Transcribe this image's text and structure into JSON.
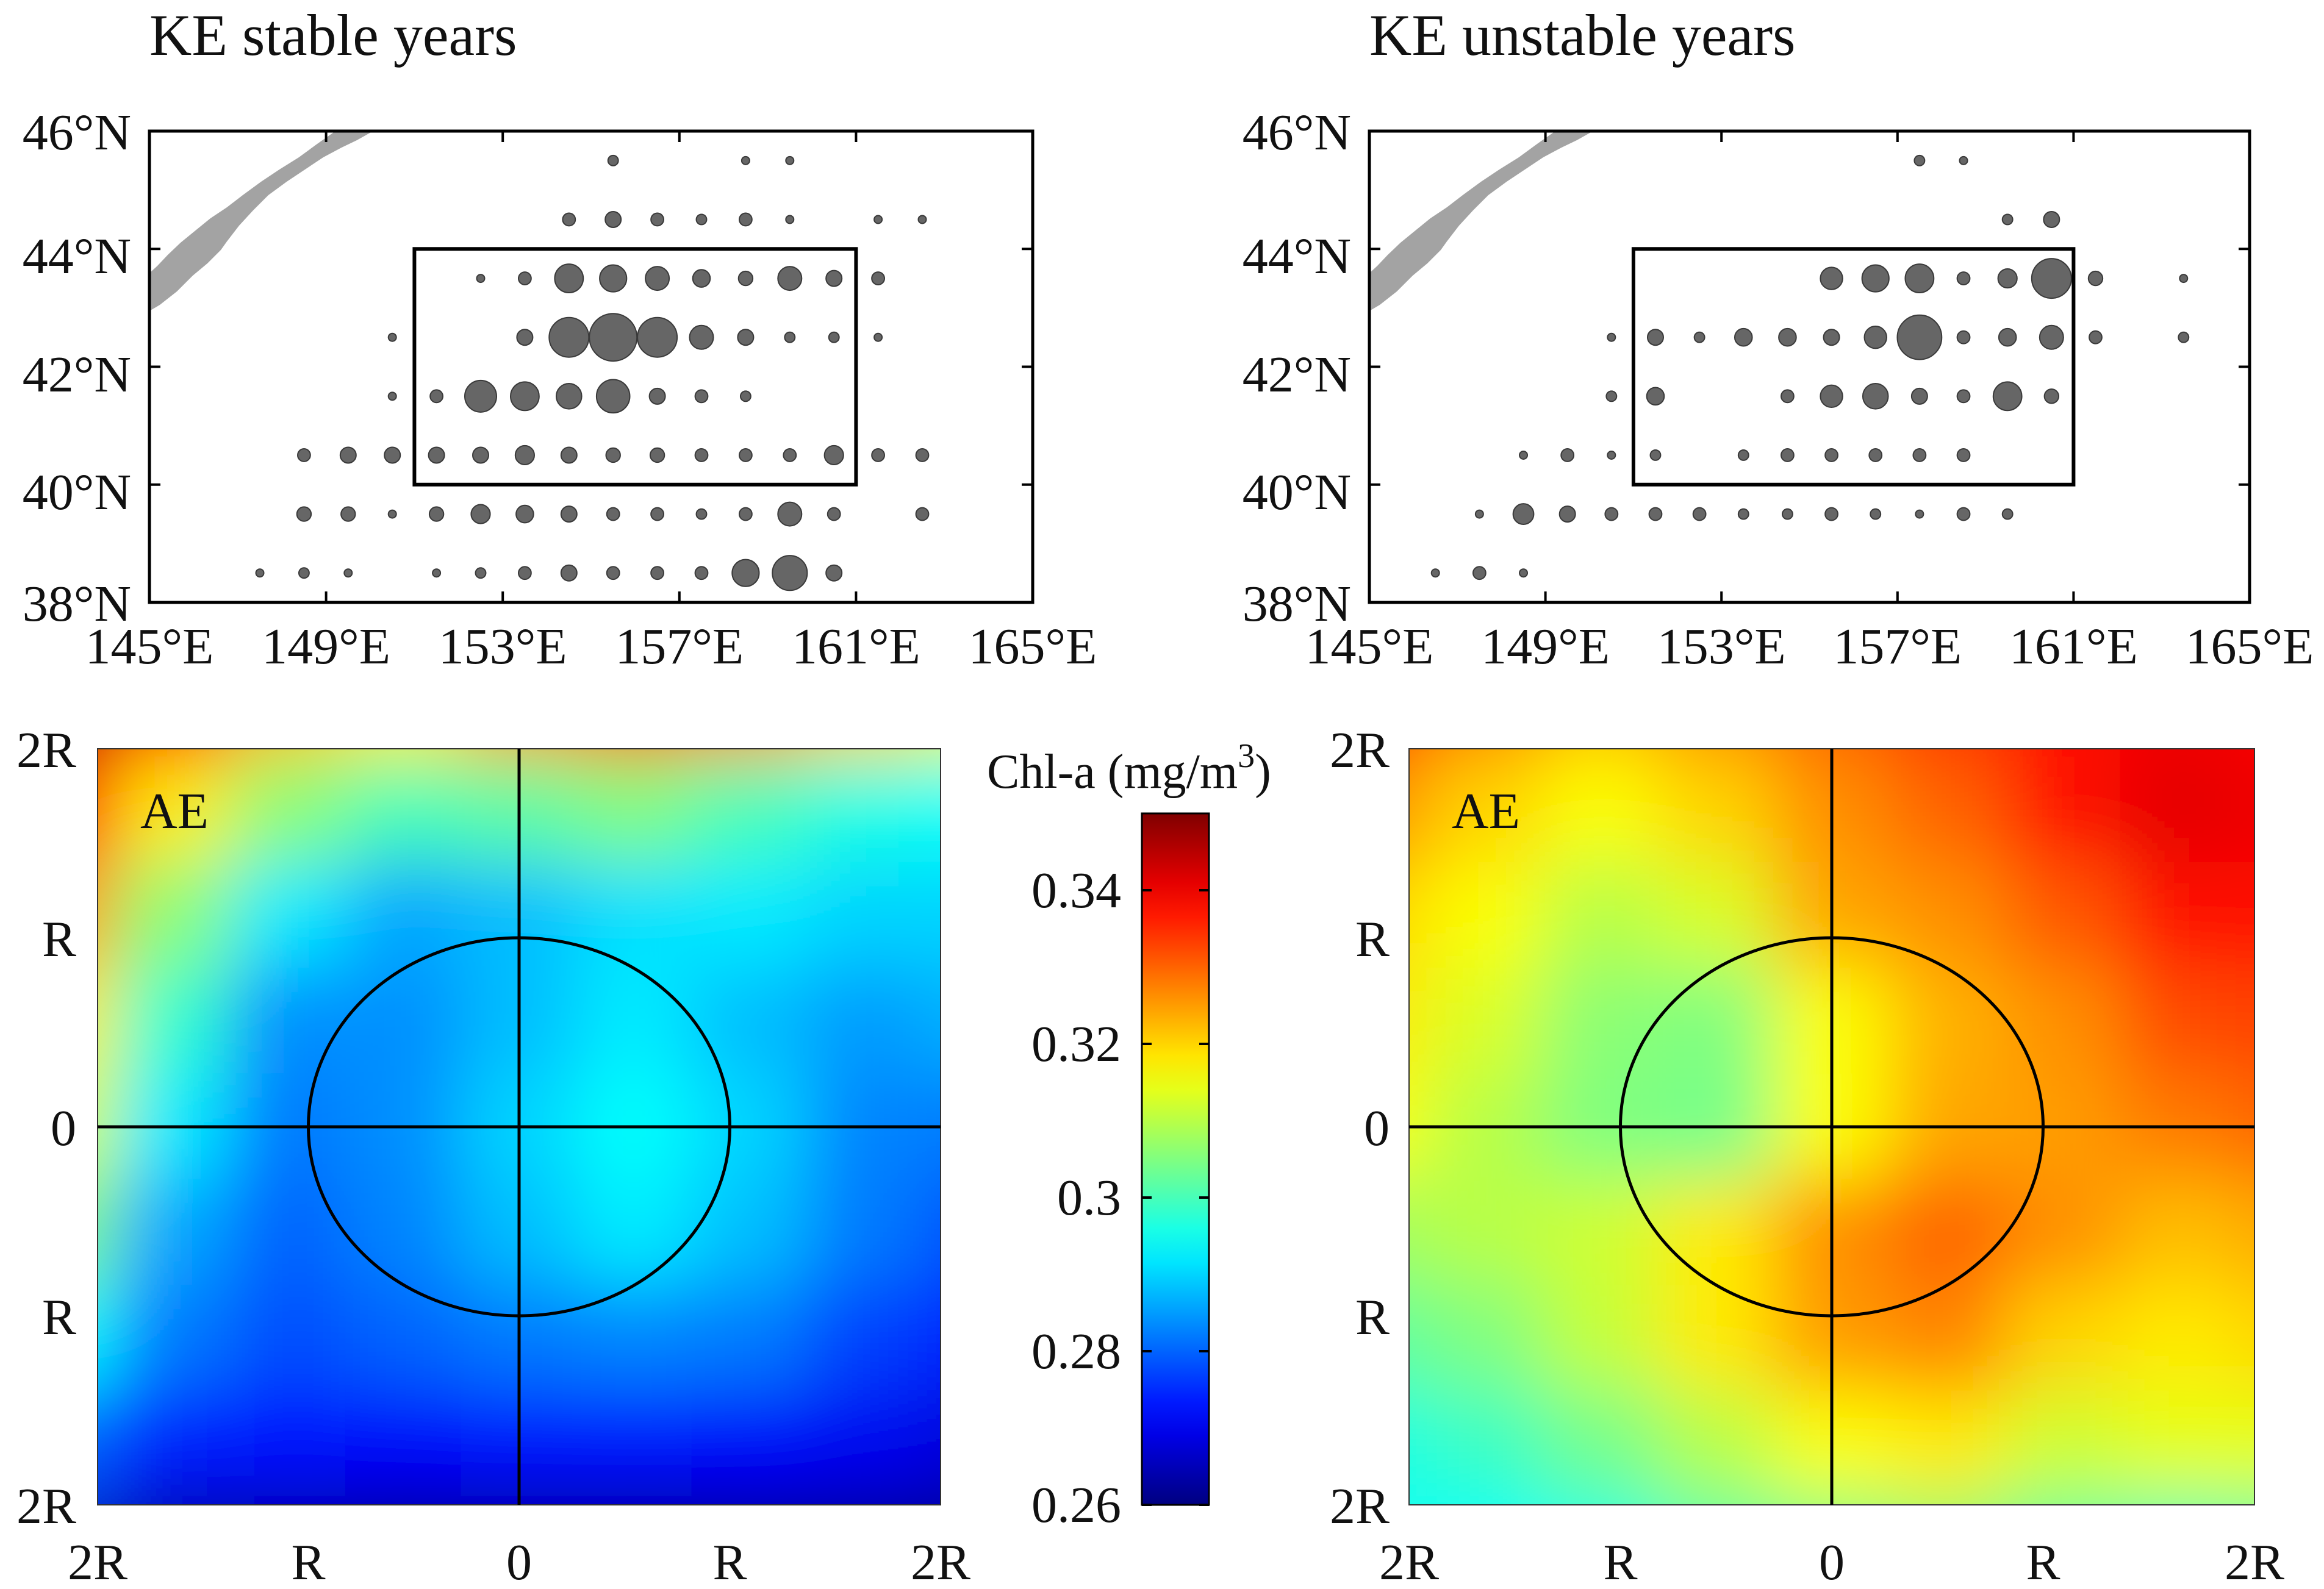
{
  "figure": {
    "colors": {
      "land": "#a3a3a3",
      "dot": "#666666",
      "dot_edge": "#3a3a3a",
      "frame": "#000000"
    }
  },
  "chart_data": [
    {
      "type": "scatter",
      "panel": "top-left",
      "title": "KE stable years",
      "x_ticks": [
        "145°E",
        "149°E",
        "153°E",
        "157°E",
        "161°E",
        "165°E"
      ],
      "y_ticks": [
        "38°N",
        "40°N",
        "42°N",
        "44°N",
        "46°N"
      ],
      "xlim": [
        145,
        165
      ],
      "ylim": [
        38,
        46
      ],
      "region_box": {
        "lon": [
          151,
          161
        ],
        "lat": [
          40,
          44
        ]
      },
      "points": [
        {
          "lon": 155.5,
          "lat": 45.5,
          "size": 1.3
        },
        {
          "lon": 158.5,
          "lat": 45.5,
          "size": 1.0
        },
        {
          "lon": 159.5,
          "lat": 45.5,
          "size": 1.0
        },
        {
          "lon": 154.5,
          "lat": 44.5,
          "size": 1.6
        },
        {
          "lon": 155.5,
          "lat": 44.5,
          "size": 2.0
        },
        {
          "lon": 156.5,
          "lat": 44.5,
          "size": 1.6
        },
        {
          "lon": 157.5,
          "lat": 44.5,
          "size": 1.3
        },
        {
          "lon": 158.5,
          "lat": 44.5,
          "size": 1.6
        },
        {
          "lon": 159.5,
          "lat": 44.5,
          "size": 1.0
        },
        {
          "lon": 161.5,
          "lat": 44.5,
          "size": 1.0
        },
        {
          "lon": 162.5,
          "lat": 44.5,
          "size": 1.0
        },
        {
          "lon": 152.5,
          "lat": 43.5,
          "size": 1.0
        },
        {
          "lon": 153.5,
          "lat": 43.5,
          "size": 1.6
        },
        {
          "lon": 154.5,
          "lat": 43.5,
          "size": 3.6
        },
        {
          "lon": 155.5,
          "lat": 43.5,
          "size": 3.4
        },
        {
          "lon": 156.5,
          "lat": 43.5,
          "size": 3.0
        },
        {
          "lon": 157.5,
          "lat": 43.5,
          "size": 2.2
        },
        {
          "lon": 158.5,
          "lat": 43.5,
          "size": 1.8
        },
        {
          "lon": 159.5,
          "lat": 43.5,
          "size": 3.0
        },
        {
          "lon": 160.5,
          "lat": 43.5,
          "size": 2.0
        },
        {
          "lon": 161.5,
          "lat": 43.5,
          "size": 1.6
        },
        {
          "lon": 150.5,
          "lat": 42.5,
          "size": 1.0
        },
        {
          "lon": 153.5,
          "lat": 42.5,
          "size": 2.0
        },
        {
          "lon": 154.5,
          "lat": 42.5,
          "size": 5.0
        },
        {
          "lon": 155.5,
          "lat": 42.5,
          "size": 6.0
        },
        {
          "lon": 156.5,
          "lat": 42.5,
          "size": 5.0
        },
        {
          "lon": 157.5,
          "lat": 42.5,
          "size": 3.0
        },
        {
          "lon": 158.5,
          "lat": 42.5,
          "size": 2.0
        },
        {
          "lon": 159.5,
          "lat": 42.5,
          "size": 1.3
        },
        {
          "lon": 160.5,
          "lat": 42.5,
          "size": 1.3
        },
        {
          "lon": 161.5,
          "lat": 42.5,
          "size": 1.0
        },
        {
          "lon": 150.5,
          "lat": 41.5,
          "size": 1.0
        },
        {
          "lon": 151.5,
          "lat": 41.5,
          "size": 1.6
        },
        {
          "lon": 152.5,
          "lat": 41.5,
          "size": 4.0
        },
        {
          "lon": 153.5,
          "lat": 41.5,
          "size": 3.6
        },
        {
          "lon": 154.5,
          "lat": 41.5,
          "size": 3.2
        },
        {
          "lon": 155.5,
          "lat": 41.5,
          "size": 4.2
        },
        {
          "lon": 156.5,
          "lat": 41.5,
          "size": 2.0
        },
        {
          "lon": 157.5,
          "lat": 41.5,
          "size": 1.6
        },
        {
          "lon": 158.5,
          "lat": 41.5,
          "size": 1.3
        },
        {
          "lon": 148.5,
          "lat": 40.5,
          "size": 1.6
        },
        {
          "lon": 149.5,
          "lat": 40.5,
          "size": 2.0
        },
        {
          "lon": 150.5,
          "lat": 40.5,
          "size": 2.0
        },
        {
          "lon": 151.5,
          "lat": 40.5,
          "size": 2.0
        },
        {
          "lon": 152.5,
          "lat": 40.5,
          "size": 2.0
        },
        {
          "lon": 153.5,
          "lat": 40.5,
          "size": 2.4
        },
        {
          "lon": 154.5,
          "lat": 40.5,
          "size": 2.0
        },
        {
          "lon": 155.5,
          "lat": 40.5,
          "size": 1.8
        },
        {
          "lon": 156.5,
          "lat": 40.5,
          "size": 1.8
        },
        {
          "lon": 157.5,
          "lat": 40.5,
          "size": 1.6
        },
        {
          "lon": 158.5,
          "lat": 40.5,
          "size": 1.6
        },
        {
          "lon": 159.5,
          "lat": 40.5,
          "size": 1.6
        },
        {
          "lon": 160.5,
          "lat": 40.5,
          "size": 2.4
        },
        {
          "lon": 161.5,
          "lat": 40.5,
          "size": 1.6
        },
        {
          "lon": 162.5,
          "lat": 40.5,
          "size": 1.6
        },
        {
          "lon": 148.5,
          "lat": 39.5,
          "size": 1.8
        },
        {
          "lon": 149.5,
          "lat": 39.5,
          "size": 1.8
        },
        {
          "lon": 150.5,
          "lat": 39.5,
          "size": 1.0
        },
        {
          "lon": 151.5,
          "lat": 39.5,
          "size": 1.8
        },
        {
          "lon": 152.5,
          "lat": 39.5,
          "size": 2.4
        },
        {
          "lon": 153.5,
          "lat": 39.5,
          "size": 2.2
        },
        {
          "lon": 154.5,
          "lat": 39.5,
          "size": 2.0
        },
        {
          "lon": 155.5,
          "lat": 39.5,
          "size": 1.6
        },
        {
          "lon": 156.5,
          "lat": 39.5,
          "size": 1.6
        },
        {
          "lon": 157.5,
          "lat": 39.5,
          "size": 1.3
        },
        {
          "lon": 158.5,
          "lat": 39.5,
          "size": 1.6
        },
        {
          "lon": 159.5,
          "lat": 39.5,
          "size": 3.0
        },
        {
          "lon": 160.5,
          "lat": 39.5,
          "size": 1.6
        },
        {
          "lon": 162.5,
          "lat": 39.5,
          "size": 1.6
        },
        {
          "lon": 147.5,
          "lat": 38.5,
          "size": 1.0
        },
        {
          "lon": 148.5,
          "lat": 38.5,
          "size": 1.3
        },
        {
          "lon": 149.5,
          "lat": 38.5,
          "size": 1.0
        },
        {
          "lon": 151.5,
          "lat": 38.5,
          "size": 1.0
        },
        {
          "lon": 152.5,
          "lat": 38.5,
          "size": 1.3
        },
        {
          "lon": 153.5,
          "lat": 38.5,
          "size": 1.6
        },
        {
          "lon": 154.5,
          "lat": 38.5,
          "size": 2.0
        },
        {
          "lon": 155.5,
          "lat": 38.5,
          "size": 1.6
        },
        {
          "lon": 156.5,
          "lat": 38.5,
          "size": 1.6
        },
        {
          "lon": 157.5,
          "lat": 38.5,
          "size": 1.6
        },
        {
          "lon": 158.5,
          "lat": 38.5,
          "size": 3.4
        },
        {
          "lon": 159.5,
          "lat": 38.5,
          "size": 4.4
        },
        {
          "lon": 160.5,
          "lat": 38.5,
          "size": 2.0
        }
      ]
    },
    {
      "type": "scatter",
      "panel": "top-right",
      "title": "KE unstable years",
      "x_ticks": [
        "145°E",
        "149°E",
        "153°E",
        "157°E",
        "161°E",
        "165°E"
      ],
      "y_ticks": [
        "38°N",
        "40°N",
        "42°N",
        "44°N",
        "46°N"
      ],
      "xlim": [
        145,
        165
      ],
      "ylim": [
        38,
        46
      ],
      "region_box": {
        "lon": [
          151,
          161
        ],
        "lat": [
          40,
          44
        ]
      },
      "points": [
        {
          "lon": 157.5,
          "lat": 45.5,
          "size": 1.3
        },
        {
          "lon": 158.5,
          "lat": 45.5,
          "size": 1.0
        },
        {
          "lon": 159.5,
          "lat": 44.5,
          "size": 1.3
        },
        {
          "lon": 160.5,
          "lat": 44.5,
          "size": 2.0
        },
        {
          "lon": 155.5,
          "lat": 43.5,
          "size": 2.8
        },
        {
          "lon": 156.5,
          "lat": 43.5,
          "size": 3.4
        },
        {
          "lon": 157.5,
          "lat": 43.5,
          "size": 3.6
        },
        {
          "lon": 158.5,
          "lat": 43.5,
          "size": 1.6
        },
        {
          "lon": 159.5,
          "lat": 43.5,
          "size": 2.4
        },
        {
          "lon": 160.5,
          "lat": 43.5,
          "size": 5.0
        },
        {
          "lon": 161.5,
          "lat": 43.5,
          "size": 1.8
        },
        {
          "lon": 163.5,
          "lat": 43.5,
          "size": 1.0
        },
        {
          "lon": 150.5,
          "lat": 42.5,
          "size": 1.0
        },
        {
          "lon": 151.5,
          "lat": 42.5,
          "size": 2.0
        },
        {
          "lon": 152.5,
          "lat": 42.5,
          "size": 1.3
        },
        {
          "lon": 153.5,
          "lat": 42.5,
          "size": 2.2
        },
        {
          "lon": 154.5,
          "lat": 42.5,
          "size": 2.2
        },
        {
          "lon": 155.5,
          "lat": 42.5,
          "size": 2.0
        },
        {
          "lon": 156.5,
          "lat": 42.5,
          "size": 2.8
        },
        {
          "lon": 157.5,
          "lat": 42.5,
          "size": 5.6
        },
        {
          "lon": 158.5,
          "lat": 42.5,
          "size": 1.6
        },
        {
          "lon": 159.5,
          "lat": 42.5,
          "size": 2.2
        },
        {
          "lon": 160.5,
          "lat": 42.5,
          "size": 3.0
        },
        {
          "lon": 161.5,
          "lat": 42.5,
          "size": 1.6
        },
        {
          "lon": 163.5,
          "lat": 42.5,
          "size": 1.3
        },
        {
          "lon": 150.5,
          "lat": 41.5,
          "size": 1.3
        },
        {
          "lon": 151.5,
          "lat": 41.5,
          "size": 2.2
        },
        {
          "lon": 154.5,
          "lat": 41.5,
          "size": 1.6
        },
        {
          "lon": 155.5,
          "lat": 41.5,
          "size": 2.8
        },
        {
          "lon": 156.5,
          "lat": 41.5,
          "size": 3.2
        },
        {
          "lon": 157.5,
          "lat": 41.5,
          "size": 2.0
        },
        {
          "lon": 158.5,
          "lat": 41.5,
          "size": 1.6
        },
        {
          "lon": 159.5,
          "lat": 41.5,
          "size": 3.6
        },
        {
          "lon": 160.5,
          "lat": 41.5,
          "size": 1.8
        },
        {
          "lon": 148.5,
          "lat": 40.5,
          "size": 1.0
        },
        {
          "lon": 149.5,
          "lat": 40.5,
          "size": 1.6
        },
        {
          "lon": 150.5,
          "lat": 40.5,
          "size": 1.0
        },
        {
          "lon": 151.5,
          "lat": 40.5,
          "size": 1.3
        },
        {
          "lon": 153.5,
          "lat": 40.5,
          "size": 1.3
        },
        {
          "lon": 154.5,
          "lat": 40.5,
          "size": 1.6
        },
        {
          "lon": 155.5,
          "lat": 40.5,
          "size": 1.6
        },
        {
          "lon": 156.5,
          "lat": 40.5,
          "size": 1.6
        },
        {
          "lon": 157.5,
          "lat": 40.5,
          "size": 1.6
        },
        {
          "lon": 158.5,
          "lat": 40.5,
          "size": 1.6
        },
        {
          "lon": 147.5,
          "lat": 39.5,
          "size": 1.0
        },
        {
          "lon": 148.5,
          "lat": 39.5,
          "size": 2.6
        },
        {
          "lon": 149.5,
          "lat": 39.5,
          "size": 2.0
        },
        {
          "lon": 150.5,
          "lat": 39.5,
          "size": 1.6
        },
        {
          "lon": 151.5,
          "lat": 39.5,
          "size": 1.6
        },
        {
          "lon": 152.5,
          "lat": 39.5,
          "size": 1.6
        },
        {
          "lon": 153.5,
          "lat": 39.5,
          "size": 1.3
        },
        {
          "lon": 154.5,
          "lat": 39.5,
          "size": 1.3
        },
        {
          "lon": 155.5,
          "lat": 39.5,
          "size": 1.6
        },
        {
          "lon": 156.5,
          "lat": 39.5,
          "size": 1.3
        },
        {
          "lon": 157.5,
          "lat": 39.5,
          "size": 1.0
        },
        {
          "lon": 158.5,
          "lat": 39.5,
          "size": 1.6
        },
        {
          "lon": 159.5,
          "lat": 39.5,
          "size": 1.3
        },
        {
          "lon": 146.5,
          "lat": 38.5,
          "size": 1.0
        },
        {
          "lon": 147.5,
          "lat": 38.5,
          "size": 1.6
        },
        {
          "lon": 148.5,
          "lat": 38.5,
          "size": 1.0
        }
      ]
    },
    {
      "type": "heatmap",
      "panel": "bottom-left",
      "label": "AE",
      "x_ticks": [
        "2R",
        "R",
        "0",
        "R",
        "2R"
      ],
      "y_ticks": [
        "2R",
        "R",
        "0",
        "R",
        "2R"
      ],
      "xlim": [
        -2,
        2
      ],
      "ylim": [
        -2,
        2
      ],
      "eddy_radius": 1,
      "crosshair": true,
      "grid": [
        [
          0.345,
          0.335,
          0.322,
          0.318,
          0.325,
          0.33,
          0.326,
          0.32,
          0.315
        ],
        [
          0.336,
          0.318,
          0.306,
          0.3,
          0.302,
          0.305,
          0.3,
          0.296,
          0.294
        ],
        [
          0.325,
          0.306,
          0.292,
          0.286,
          0.288,
          0.291,
          0.292,
          0.29,
          0.29
        ],
        [
          0.318,
          0.298,
          0.284,
          0.284,
          0.288,
          0.292,
          0.288,
          0.285,
          0.287
        ],
        [
          0.313,
          0.292,
          0.282,
          0.284,
          0.29,
          0.294,
          0.29,
          0.283,
          0.282
        ],
        [
          0.305,
          0.286,
          0.28,
          0.283,
          0.288,
          0.292,
          0.288,
          0.282,
          0.278
        ],
        [
          0.294,
          0.282,
          0.278,
          0.28,
          0.282,
          0.283,
          0.282,
          0.277,
          0.274
        ],
        [
          0.28,
          0.274,
          0.272,
          0.271,
          0.272,
          0.272,
          0.271,
          0.27,
          0.268
        ],
        [
          0.266,
          0.263,
          0.262,
          0.261,
          0.261,
          0.261,
          0.261,
          0.261,
          0.261
        ]
      ]
    },
    {
      "type": "heatmap",
      "panel": "bottom-right",
      "label": "AE",
      "x_ticks": [
        "2R",
        "R",
        "0",
        "R",
        "2R"
      ],
      "y_ticks": [
        "2R",
        "R",
        "0",
        "R",
        "2R"
      ],
      "xlim": [
        -2,
        2
      ],
      "ylim": [
        -2,
        2
      ],
      "eddy_radius": 1,
      "crosshair": true,
      "grid": [
        [
          0.334,
          0.327,
          0.322,
          0.326,
          0.33,
          0.334,
          0.338,
          0.34,
          0.339
        ],
        [
          0.326,
          0.32,
          0.316,
          0.32,
          0.326,
          0.33,
          0.338,
          0.341,
          0.34
        ],
        [
          0.32,
          0.316,
          0.31,
          0.313,
          0.324,
          0.326,
          0.331,
          0.338,
          0.338
        ],
        [
          0.318,
          0.313,
          0.306,
          0.305,
          0.316,
          0.323,
          0.326,
          0.332,
          0.333
        ],
        [
          0.316,
          0.31,
          0.305,
          0.304,
          0.316,
          0.324,
          0.325,
          0.328,
          0.33
        ],
        [
          0.308,
          0.31,
          0.312,
          0.318,
          0.326,
          0.33,
          0.326,
          0.322,
          0.324
        ],
        [
          0.302,
          0.305,
          0.311,
          0.318,
          0.325,
          0.327,
          0.32,
          0.318,
          0.32
        ],
        [
          0.296,
          0.299,
          0.304,
          0.31,
          0.316,
          0.318,
          0.312,
          0.314,
          0.314
        ],
        [
          0.295,
          0.294,
          0.296,
          0.301,
          0.304,
          0.306,
          0.302,
          0.3,
          0.302
        ]
      ]
    },
    {
      "type": "colorbar",
      "panel": "colorbar",
      "title_main": "Chl-a (mg/m",
      "title_sup": "3",
      "title_end": ")",
      "range": [
        0.26,
        0.35
      ],
      "ticks": [
        "0.34",
        "0.32",
        "0.3",
        "0.28",
        "0.26"
      ],
      "tick_values": [
        0.34,
        0.32,
        0.3,
        0.28,
        0.26
      ],
      "colormap": "jet"
    }
  ]
}
